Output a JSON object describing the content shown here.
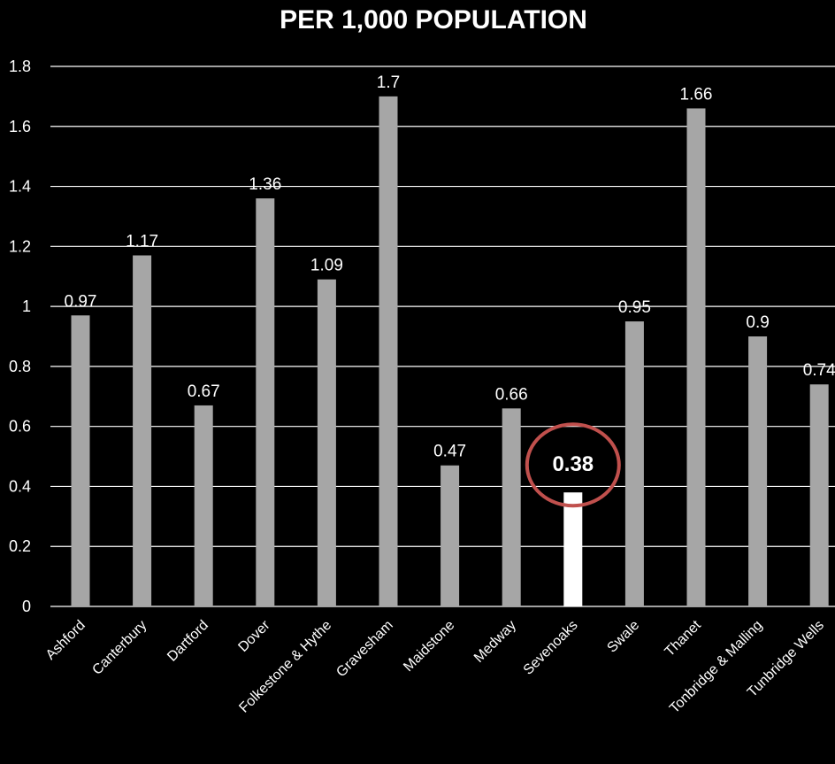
{
  "chart_data": {
    "type": "bar",
    "title": "PER 1,000 POPULATION",
    "xlabel": "",
    "ylabel": "",
    "ylim": [
      0,
      1.8
    ],
    "yticks": [
      0,
      0.2,
      0.4,
      0.6,
      0.8,
      1,
      1.2,
      1.4,
      1.6,
      1.8
    ],
    "ytick_labels": [
      "0",
      "0.2",
      "0.4",
      "0.6",
      "0.8",
      "1",
      "1.2",
      "1.4",
      "1.6",
      "1.8"
    ],
    "grid": true,
    "categories": [
      "Ashford",
      "Canterbury",
      "Dartford",
      "Dover",
      "Folkestone & Hythe",
      "Gravesham",
      "Maidstone",
      "Medway",
      "Sevenoaks",
      "Swale",
      "Thanet",
      "Tonbridge & Malling",
      "Tunbridge Wells"
    ],
    "values": [
      0.97,
      1.17,
      0.67,
      1.36,
      1.09,
      1.7,
      0.47,
      0.66,
      0.38,
      0.95,
      1.66,
      0.9,
      0.74
    ],
    "value_labels": [
      "0.97",
      "1.17",
      "0.67",
      "1.36",
      "1.09",
      "1.7",
      "0.47",
      "0.66",
      "0.38",
      "0.95",
      "1.66",
      "0.9",
      "0.74"
    ],
    "highlight": {
      "category": "Sevenoaks",
      "color": "#ffffff",
      "circle_color": "#c0504d"
    },
    "colors": {
      "bar": "#a6a6a6",
      "background": "#000000",
      "text": "#ffffff",
      "grid": "#ffffff"
    }
  }
}
